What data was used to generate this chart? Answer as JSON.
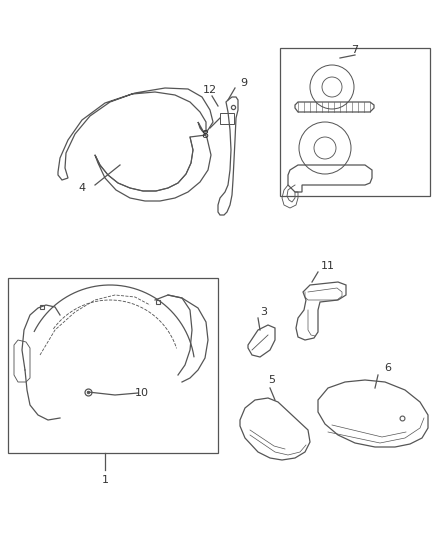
{
  "background_color": "#ffffff",
  "line_color": "#555555",
  "label_color": "#333333",
  "fig_width": 4.38,
  "fig_height": 5.33,
  "dpi": 100
}
